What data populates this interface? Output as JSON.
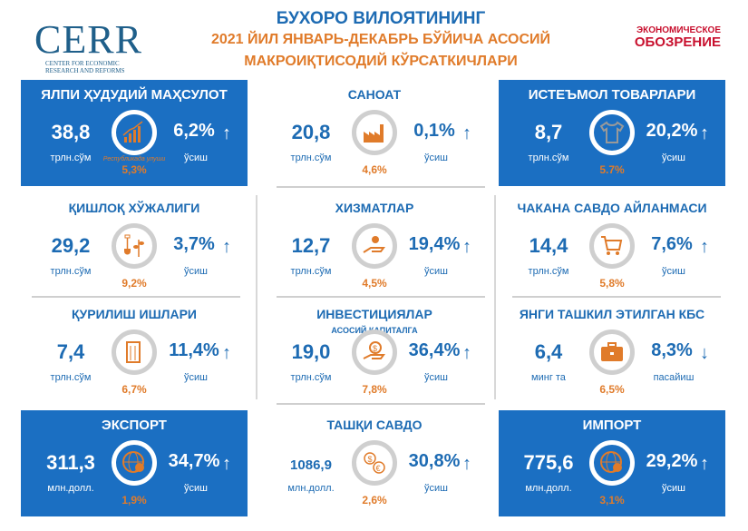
{
  "logo": {
    "name": "CERR",
    "subtitle_line1": "Center for Economic",
    "subtitle_line2": "Research and Reforms"
  },
  "partner_logo": {
    "line1": "ЭКОНОМИЧЕСКОЕ",
    "line2": "ОБОЗРЕНИЕ"
  },
  "header": {
    "title": "БУХОРО ВИЛОЯТИНИНГ",
    "subtitle_line1": "2021 ЙИЛ ЯНВАРЬ-ДЕКАБРЬ БЎЙИЧА АСОСИЙ",
    "subtitle_line2": "МАКРОИҚТИСОДИЙ КЎРСАТКИЧЛАРИ"
  },
  "colors": {
    "blue": "#1b6fc2",
    "orange": "#e07b2a",
    "text_blue": "#1d6bb3"
  },
  "cards": [
    {
      "title": "ЯЛПИ ҲУДУДИЙ МАҲСУЛОТ",
      "value": "38,8",
      "unit": "трлн.сўм",
      "growth": "6,2%",
      "direction": "up",
      "growth_label": "ўсиш",
      "share": "5,3%",
      "note": "Республикада улуши",
      "icon": "growth-chart-icon",
      "style": "blue"
    },
    {
      "title": "САНОАТ",
      "value": "20,8",
      "unit": "трлн.сўм",
      "growth": "0,1%",
      "direction": "up",
      "growth_label": "ўсиш",
      "share": "4,6%",
      "icon": "factory-icon",
      "style": "plain"
    },
    {
      "title": "ИСТЕЪМОЛ ТОВАРЛАРИ",
      "value": "8,7",
      "unit": "трлн.сўм",
      "growth": "20,2%",
      "direction": "up",
      "growth_label": "ўсиш",
      "share": "5.7%",
      "icon": "tshirt-icon",
      "style": "blue"
    },
    {
      "title": "ҚИШЛОҚ ХЎЖАЛИГИ",
      "value": "29,2",
      "unit": "трлн.сўм",
      "growth": "3,7%",
      "direction": "up",
      "growth_label": "ўсиш",
      "share": "9,2%",
      "icon": "shovel-plant-icon",
      "style": "plain"
    },
    {
      "title": "ХИЗМАТЛАР",
      "value": "12,7",
      "unit": "трлн.сўм",
      "growth": "19,4%",
      "direction": "up",
      "growth_label": "ўсиш",
      "share": "4,5%",
      "icon": "service-hand-icon",
      "style": "plain"
    },
    {
      "title": "ЧАКАНА САВДО АЙЛАНМАСИ",
      "value": "14,4",
      "unit": "трлн.сўм",
      "growth": "7,6%",
      "direction": "up",
      "growth_label": "ўсиш",
      "share": "5,8%",
      "icon": "shopping-cart-icon",
      "style": "plain"
    },
    {
      "title": "ҚУРИЛИШ ИШЛАРИ",
      "value": "7,4",
      "unit": "трлн.сўм",
      "growth": "11,4%",
      "direction": "up",
      "growth_label": "ўсиш",
      "share": "6,7%",
      "icon": "building-icon",
      "style": "plain"
    },
    {
      "title": "ИНВЕСТИЦИЯЛАР",
      "subtitle": "АСОСИЙ КАПИТАЛГА",
      "value": "19,0",
      "unit": "трлн.сўм",
      "growth": "36,4%",
      "direction": "up",
      "growth_label": "ўсиш",
      "share": "7,8%",
      "icon": "money-hand-icon",
      "style": "plain"
    },
    {
      "title": "ЯНГИ ТАШКИЛ ЭТИЛГАН КБС",
      "value": "6,4",
      "unit": "минг та",
      "growth": "8,3%",
      "direction": "down",
      "growth_label": "пасайиш",
      "share": "6,5%",
      "icon": "briefcase-icon",
      "style": "plain"
    },
    {
      "title": "ЭКСПОРТ",
      "value": "311,3",
      "unit": "млн.долл.",
      "growth": "34,7%",
      "direction": "up",
      "growth_label": "ўсиш",
      "share": "1,9%",
      "icon": "globe-export-icon",
      "style": "blue"
    },
    {
      "title": "ТАШҚИ САВДО",
      "value": "1086,9",
      "unit": "млн.долл.",
      "growth": "30,8%",
      "direction": "up",
      "growth_label": "ўсиш",
      "share": "2,6%",
      "icon": "currency-exchange-icon",
      "style": "plain"
    },
    {
      "title": "ИМПОРТ",
      "value": "775,6",
      "unit": "млн.долл.",
      "growth": "29,2%",
      "direction": "up",
      "growth_label": "ўсиш",
      "share": "3,1%",
      "icon": "globe-import-icon",
      "style": "blue"
    }
  ]
}
